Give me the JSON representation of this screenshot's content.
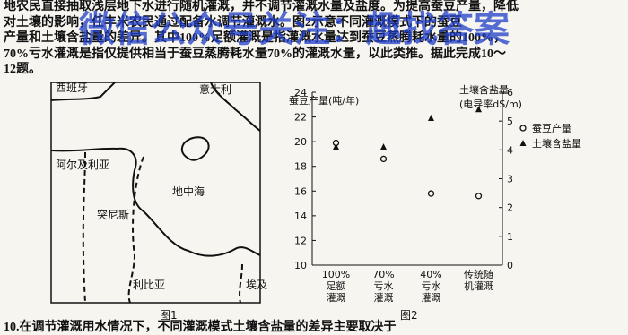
{
  "text_lines": [
    "地农民直接抽取浅层地下水进行随机灌溉，并不调节灌溉水量及盐度。为提高蚕豆产量，降低",
    "对土壤的影响，任丰米农民通过配备水调节灌溉水。图2示意不同灌溉模式下的蚕豆",
    "产量和土壤含盐量的差异。其中100%足额灌溉是指灌溉水量达到蚕豆蒸腾耗水量的100%，",
    "70%亏水灌溉是指仅提供相当于蚕豆蒸腾耗水量70%的灌溉水量，以此类推。据此完成10～",
    "12题。"
  ],
  "watermark": "微信公众号关注：趣找答案",
  "map": {
    "labels": [
      "西班牙",
      "意大利",
      "阿尔及利亚",
      "突尼斯",
      "地中海",
      "利比亚",
      "埃及"
    ],
    "caption": "图1"
  },
  "chart_data": {
    "type": "dot",
    "caption": "图2",
    "y_label": "蚕豆产量(吨/年)",
    "y2_label": [
      "土壤含盐量",
      "(电导率dS/m)"
    ],
    "categories": [
      [
        "100%",
        "足额",
        "灌溉"
      ],
      [
        "70%",
        "亏水",
        "灌溉"
      ],
      [
        "40%",
        "亏水",
        "灌溉"
      ],
      [
        "传统随",
        "机灌溉"
      ]
    ],
    "ylim": [
      10,
      24
    ],
    "yticks": [
      10,
      12,
      14,
      16,
      18,
      20,
      22,
      24
    ],
    "y2lim": [
      0,
      6
    ],
    "y2ticks": [
      0,
      1,
      2,
      3,
      4,
      5,
      6
    ],
    "series": [
      {
        "name": "蚕豆产量",
        "marker": "circle",
        "color": "#111",
        "values": [
          19.9,
          18.6,
          15.8,
          15.6
        ]
      },
      {
        "name": "土壤含盐量",
        "marker": "triangle",
        "color": "#111",
        "axis": "y2",
        "values": [
          4.1,
          4.1,
          5.1,
          5.4
        ]
      }
    ]
  },
  "question": "10.在调节灌溉用水情况下，不同灌溉模式土壤含盐量的差异主要取决于"
}
